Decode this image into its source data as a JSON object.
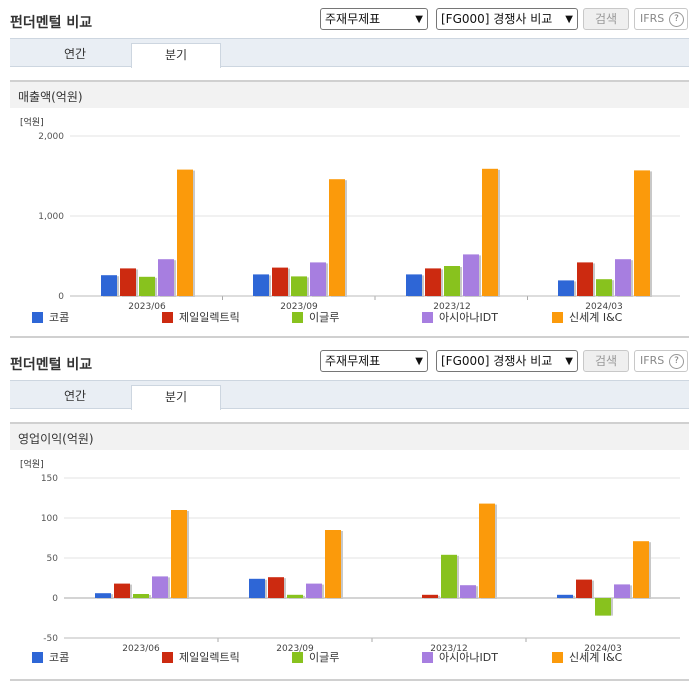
{
  "sections": [
    {
      "title": "펀더멘털 비교",
      "select1": "주재무제표",
      "select2": "[FG000] 경쟁사 비교",
      "search_label": "검색",
      "ifrs_label": "IFRS",
      "help_label": "?",
      "tabs": [
        "연간",
        "분기"
      ],
      "metric_label": "매출액(억원)"
    },
    {
      "title": "펀더멘털 비교",
      "select1": "주재무제표",
      "select2": "[FG000] 경쟁사 비교",
      "search_label": "검색",
      "ifrs_label": "IFRS",
      "help_label": "?",
      "tabs": [
        "연간",
        "분기"
      ],
      "metric_label": "영업이익(억원)"
    }
  ],
  "chart_data": [
    {
      "type": "bar",
      "unit_label": "[억원]",
      "categories": [
        "2023/06",
        "2023/09",
        "2023/12",
        "2024/03"
      ],
      "ylim": [
        0,
        2000
      ],
      "yticks": [
        0,
        1000,
        2000
      ],
      "ytick_labels": [
        "0",
        "1,000",
        "2,000"
      ],
      "series": [
        {
          "name": "코콤",
          "color": "#2e66d6",
          "values": [
            260,
            270,
            270,
            195
          ]
        },
        {
          "name": "제일일렉트릭",
          "color": "#cc2a10",
          "values": [
            345,
            355,
            345,
            420
          ]
        },
        {
          "name": "이글루",
          "color": "#88c21e",
          "values": [
            240,
            245,
            375,
            210
          ]
        },
        {
          "name": "아시아나IDT",
          "color": "#a77ee0",
          "values": [
            460,
            420,
            520,
            460
          ]
        },
        {
          "name": "신세계 I&C",
          "color": "#fb9a0b",
          "values": [
            1580,
            1460,
            1590,
            1570
          ]
        }
      ],
      "legend_position": "bottom"
    },
    {
      "type": "bar",
      "unit_label": "[억원]",
      "categories": [
        "2023/06",
        "2023/09",
        "2023/12",
        "2024/03"
      ],
      "ylim": [
        -50,
        150
      ],
      "yticks": [
        -50,
        0,
        50,
        100,
        150
      ],
      "ytick_labels": [
        "-50",
        "0",
        "50",
        "100",
        "150"
      ],
      "series": [
        {
          "name": "코콤",
          "color": "#2e66d6",
          "values": [
            6,
            24,
            0,
            4
          ]
        },
        {
          "name": "제일일렉트릭",
          "color": "#cc2a10",
          "values": [
            18,
            26,
            4,
            23
          ]
        },
        {
          "name": "이글루",
          "color": "#88c21e",
          "values": [
            5,
            4,
            54,
            -22
          ]
        },
        {
          "name": "아시아나IDT",
          "color": "#a77ee0",
          "values": [
            27,
            18,
            16,
            17
          ]
        },
        {
          "name": "신세계 I&C",
          "color": "#fb9a0b",
          "values": [
            110,
            85,
            118,
            71
          ]
        }
      ],
      "legend_position": "bottom"
    }
  ]
}
